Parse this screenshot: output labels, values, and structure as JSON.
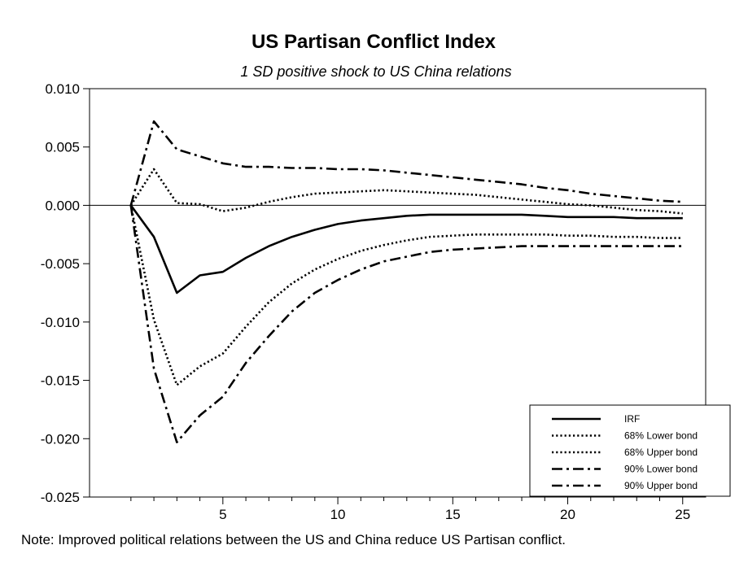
{
  "chart_data": {
    "type": "line",
    "title": "US Partisan Conflict Index",
    "subtitle": "1 SD positive shock to US China relations",
    "note": "Note: Improved political relations between the US and China reduce US Partisan conflict.",
    "xlim": [
      -0.8,
      26
    ],
    "ylim": [
      -0.025,
      0.01
    ],
    "x_ticks": [
      5,
      10,
      15,
      20,
      25
    ],
    "x_minor_ticks": [
      1,
      2,
      3,
      4,
      5,
      6,
      7,
      8,
      9,
      10,
      11,
      12,
      13,
      14,
      15,
      16,
      17,
      18,
      19,
      20,
      21,
      22,
      23,
      24,
      25
    ],
    "y_ticks": [
      0.01,
      0.005,
      0.0,
      -0.005,
      -0.01,
      -0.015,
      -0.02,
      -0.025
    ],
    "y_tick_labels": [
      "0.010",
      "0.005",
      "0.000",
      "-0.005",
      "-0.010",
      "-0.015",
      "-0.020",
      "-0.025"
    ],
    "zero_line": true,
    "grid": false,
    "legend_position": "bottom-right",
    "x": [
      1,
      2,
      3,
      4,
      5,
      6,
      7,
      8,
      9,
      10,
      11,
      12,
      13,
      14,
      15,
      16,
      17,
      18,
      19,
      20,
      21,
      22,
      23,
      24,
      25
    ],
    "series": [
      {
        "name": "IRF",
        "style": "solid",
        "values": [
          0.0,
          -0.0027,
          -0.0075,
          -0.006,
          -0.0057,
          -0.0045,
          -0.0035,
          -0.0027,
          -0.0021,
          -0.0016,
          -0.0013,
          -0.0011,
          -0.0009,
          -0.0008,
          -0.0008,
          -0.0008,
          -0.0008,
          -0.0008,
          -0.0009,
          -0.001,
          -0.001,
          -0.001,
          -0.0011,
          -0.0011,
          -0.0011
        ]
      },
      {
        "name": "68% Lower bond",
        "style": "dotted",
        "values": [
          0.0,
          -0.0098,
          -0.0154,
          -0.0138,
          -0.0127,
          -0.0104,
          -0.0083,
          -0.0067,
          -0.0055,
          -0.0046,
          -0.0039,
          -0.0034,
          -0.003,
          -0.0027,
          -0.0026,
          -0.0025,
          -0.0025,
          -0.0025,
          -0.0025,
          -0.0026,
          -0.0026,
          -0.0027,
          -0.0027,
          -0.0028,
          -0.0028
        ]
      },
      {
        "name": "68% Upper bond",
        "style": "dotted",
        "values": [
          0.0,
          0.0031,
          0.0002,
          0.0001,
          -0.0005,
          -0.0002,
          0.0003,
          0.0007,
          0.001,
          0.0011,
          0.0012,
          0.0013,
          0.0012,
          0.0011,
          0.001,
          0.0009,
          0.0007,
          0.0005,
          0.0003,
          0.0001,
          0.0,
          -0.0002,
          -0.0004,
          -0.0005,
          -0.0007
        ]
      },
      {
        "name": "90% Lower bond",
        "style": "dashdot",
        "values": [
          0.0,
          -0.014,
          -0.0203,
          -0.018,
          -0.0164,
          -0.0135,
          -0.0112,
          -0.0091,
          -0.0075,
          -0.0064,
          -0.0055,
          -0.0048,
          -0.0044,
          -0.004,
          -0.0038,
          -0.0037,
          -0.0036,
          -0.0035,
          -0.0035,
          -0.0035,
          -0.0035,
          -0.0035,
          -0.0035,
          -0.0035,
          -0.0035
        ]
      },
      {
        "name": "90% Upper bond",
        "style": "dashdot",
        "values": [
          0.0,
          0.0072,
          0.0048,
          0.0042,
          0.0036,
          0.0033,
          0.0033,
          0.0032,
          0.0032,
          0.0031,
          0.0031,
          0.003,
          0.0028,
          0.0026,
          0.0024,
          0.0022,
          0.002,
          0.0018,
          0.0015,
          0.0013,
          0.001,
          0.0008,
          0.0006,
          0.0004,
          0.0003
        ]
      }
    ]
  }
}
